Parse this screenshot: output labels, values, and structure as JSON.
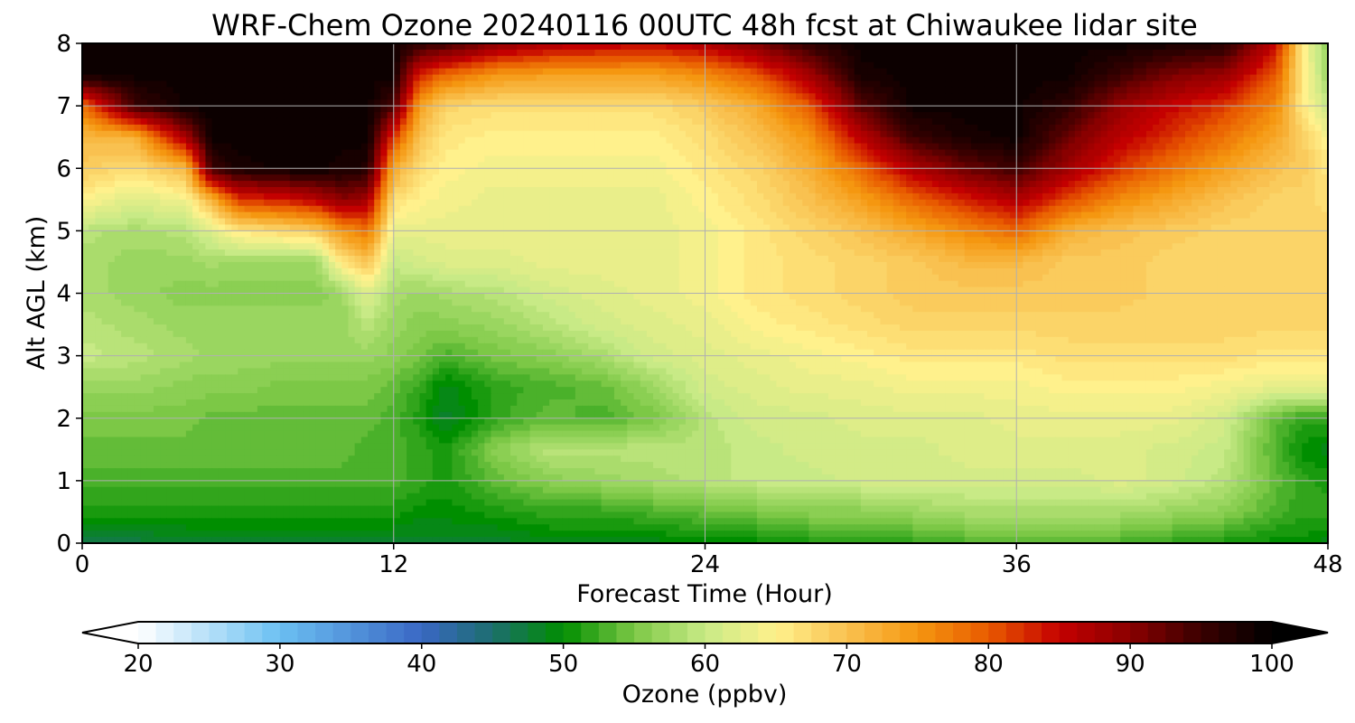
{
  "chart_data": {
    "type": "heatmap",
    "title": "WRF-Chem Ozone  20240116 00UTC 48h fcst at Chiwaukee lidar site",
    "xlabel": "Forecast Time (Hour)",
    "ylabel": "Alt AGL (km)",
    "xlim": [
      0,
      48
    ],
    "ylim": [
      0,
      8
    ],
    "xticks": [
      0,
      12,
      24,
      36,
      48
    ],
    "yticks": [
      0,
      1,
      2,
      3,
      4,
      5,
      6,
      7,
      8
    ],
    "grid": true,
    "x": [
      0,
      2,
      4,
      5,
      6,
      8,
      9,
      10,
      11,
      12,
      13,
      14,
      16,
      18,
      20,
      22,
      24,
      26,
      28,
      30,
      32,
      34,
      36,
      38,
      40,
      42,
      44,
      46,
      47,
      48
    ],
    "y": [
      0,
      0.5,
      1,
      1.5,
      2,
      2.5,
      3,
      3.5,
      4,
      4.5,
      5,
      5.5,
      6,
      6.5,
      7,
      7.5,
      8
    ],
    "z": [
      [
        47,
        47,
        48,
        48,
        48,
        48,
        48,
        48,
        48,
        48,
        48,
        48,
        48,
        49,
        49,
        49,
        50,
        50,
        51,
        51,
        52,
        53,
        53,
        53,
        53,
        52,
        51,
        50,
        50,
        49
      ],
      [
        51,
        51,
        51,
        51,
        51,
        51,
        51,
        51,
        51,
        51,
        50,
        50,
        51,
        52,
        52,
        53,
        54,
        55,
        56,
        56,
        57,
        58,
        58,
        58,
        58,
        57,
        56,
        53,
        52,
        52
      ],
      [
        53,
        53,
        53,
        53,
        53,
        53,
        53,
        53,
        53,
        53,
        52,
        51,
        54,
        56,
        57,
        58,
        59,
        60,
        60,
        61,
        61,
        61,
        61,
        61,
        62,
        61,
        59,
        54,
        52,
        51
      ],
      [
        54,
        54,
        54,
        54,
        54,
        54,
        54,
        54,
        53,
        53,
        52,
        51,
        56,
        59,
        59,
        59,
        59,
        60,
        61,
        61,
        61,
        62,
        62,
        62,
        62,
        61,
        60,
        53,
        50,
        49
      ],
      [
        55,
        55,
        55,
        54,
        54,
        54,
        54,
        54,
        54,
        53,
        51,
        48,
        52,
        54,
        53,
        55,
        59,
        61,
        61,
        62,
        62,
        62,
        63,
        63,
        63,
        63,
        61,
        54,
        52,
        52
      ],
      [
        57,
        57,
        56,
        56,
        56,
        55,
        55,
        55,
        55,
        54,
        52,
        49,
        52,
        53,
        54,
        57,
        61,
        62,
        63,
        63,
        64,
        64,
        64,
        65,
        65,
        65,
        64,
        63,
        63,
        63
      ],
      [
        60,
        59,
        58,
        57,
        57,
        57,
        57,
        57,
        57,
        56,
        55,
        53,
        55,
        56,
        58,
        61,
        62,
        63,
        64,
        65,
        66,
        66,
        66,
        67,
        67,
        67,
        67,
        66,
        66,
        66
      ],
      [
        59,
        58,
        57,
        57,
        57,
        57,
        57,
        57,
        59,
        57,
        56,
        56,
        57,
        59,
        61,
        62,
        63,
        65,
        66,
        67,
        68,
        68,
        68,
        68,
        68,
        68,
        68,
        68,
        68,
        68
      ],
      [
        58,
        57,
        56,
        56,
        56,
        56,
        56,
        57,
        62,
        58,
        57,
        58,
        59,
        61,
        62,
        63,
        64,
        66,
        67,
        68,
        69,
        69,
        69,
        69,
        69,
        68,
        68,
        68,
        68,
        68
      ],
      [
        58,
        57,
        57,
        58,
        57,
        57,
        57,
        66,
        70,
        60,
        61,
        62,
        62,
        63,
        63,
        63,
        64,
        66,
        67,
        68,
        69,
        71,
        71,
        69,
        69,
        68,
        68,
        68,
        68,
        68
      ],
      [
        59,
        58,
        59,
        62,
        66,
        68,
        69,
        75,
        78,
        63,
        63,
        63,
        63,
        63,
        63,
        63,
        64,
        66,
        68,
        70,
        73,
        76,
        79,
        72,
        70,
        69,
        68,
        68,
        68,
        68
      ],
      [
        65,
        62,
        64,
        72,
        82,
        84,
        86,
        90,
        88,
        67,
        65,
        64,
        63,
        63,
        63,
        63,
        65,
        67,
        70,
        74,
        79,
        83,
        87,
        81,
        76,
        73,
        70,
        68,
        68,
        67
      ],
      [
        69,
        67,
        71,
        95,
        98,
        99,
        99,
        98,
        97,
        73,
        67,
        65,
        64,
        64,
        64,
        64,
        66,
        68,
        72,
        79,
        87,
        92,
        95,
        88,
        82,
        78,
        74,
        70,
        69,
        66
      ],
      [
        71,
        72,
        88,
        99,
        99,
        99,
        99,
        99,
        99,
        82,
        70,
        66,
        65,
        65,
        65,
        65,
        67,
        70,
        75,
        86,
        95,
        98,
        99,
        92,
        86,
        82,
        78,
        73,
        69,
        64
      ],
      [
        78,
        95,
        99,
        99,
        99,
        99,
        99,
        99,
        99,
        94,
        74,
        68,
        67,
        67,
        67,
        67,
        69,
        73,
        80,
        93,
        99,
        99,
        99,
        96,
        89,
        85,
        82,
        76,
        66,
        60
      ],
      [
        99,
        99,
        99,
        99,
        99,
        99,
        99,
        99,
        99,
        99,
        83,
        79,
        75,
        74,
        74,
        74,
        76,
        80,
        88,
        98,
        99,
        99,
        99,
        99,
        95,
        91,
        89,
        80,
        66,
        57
      ],
      [
        99,
        99,
        99,
        99,
        99,
        99,
        99,
        99,
        99,
        99,
        96,
        95,
        90,
        87,
        86,
        85,
        87,
        91,
        96,
        99,
        99,
        99,
        99,
        99,
        99,
        98,
        97,
        85,
        66,
        56
      ]
    ],
    "colorbar": {
      "label": "Ozone  (ppbv)",
      "min": 20,
      "max": 100,
      "ticks": [
        20,
        30,
        40,
        50,
        60,
        70,
        80,
        90,
        100
      ],
      "extend": "both",
      "colormap": {
        "stops": [
          20,
          30,
          40,
          45,
          50,
          55,
          60,
          65,
          70,
          75,
          80,
          85,
          90,
          95,
          100
        ],
        "colors": [
          "#ffffff",
          "#6bc0f2",
          "#3a67c4",
          "#1c6e6e",
          "#008e00",
          "#7cc846",
          "#c8ea86",
          "#fff18c",
          "#f9c150",
          "#f59710",
          "#e85a00",
          "#c40000",
          "#8a0000",
          "#3a0000",
          "#000000"
        ]
      }
    }
  }
}
